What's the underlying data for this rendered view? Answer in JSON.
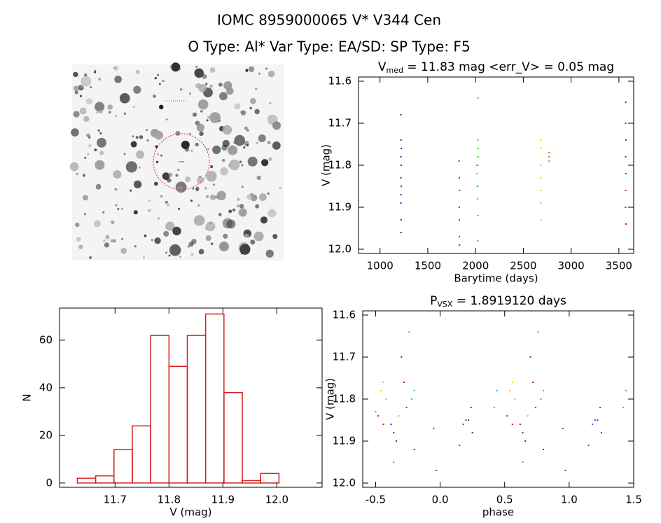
{
  "header": {
    "title": "IOMC 8959000065    V* V344 Cen",
    "subtitle": "O Type: Al*   Var Type: EA/SD:   SP Type: F5"
  },
  "chart_data": [
    {
      "type": "scatter",
      "title": {
        "main": "V",
        "sub": "med",
        "rest": " = 11.83 mag <err_V> = 0.05 mag"
      },
      "xlabel": "Barytime (days)",
      "ylabel": "V (mag)",
      "xlim": [
        775,
        3655
      ],
      "ylim": [
        12.01,
        11.59
      ],
      "xticks": [
        1000,
        1500,
        2000,
        2500,
        3000,
        3500
      ],
      "yticks": [
        11.6,
        11.7,
        11.8,
        11.9,
        {
          "value": 12,
          "label": "12.0"
        }
      ],
      "series": [
        {
          "color": "#5a1aa0",
          "x": [
            1218,
            1220,
            1222,
            1219,
            1221,
            1218,
            1222,
            1220,
            1219,
            1221,
            1220
          ],
          "values": [
            11.68,
            11.74,
            11.76,
            11.78,
            11.8,
            11.83,
            11.85,
            11.87,
            11.89,
            11.93,
            11.96
          ]
        },
        {
          "color": "#1a5ad0",
          "x": [
            1828,
            1830,
            1832,
            1829,
            1831,
            1830,
            1832
          ],
          "values": [
            11.79,
            11.83,
            11.86,
            11.9,
            11.93,
            11.97,
            11.99
          ]
        },
        {
          "color": "#20d0d0",
          "x": [
            2012,
            2015,
            2018,
            2020
          ],
          "values": [
            11.8,
            11.82,
            11.85,
            11.88
          ]
        },
        {
          "color": "#30d030",
          "x": [
            2025,
            2024,
            2026,
            2027,
            2023,
            2025,
            2026,
            2024
          ],
          "values": [
            11.64,
            11.74,
            11.76,
            11.78,
            11.8,
            11.85,
            11.92,
            11.98
          ]
        },
        {
          "color": "#f0c010",
          "x": [
            2680,
            2682,
            2684,
            2681,
            2683,
            2682,
            2684
          ],
          "values": [
            11.74,
            11.76,
            11.8,
            11.83,
            11.86,
            11.89,
            11.93
          ]
        },
        {
          "color": "#e07010",
          "x": [
            2770,
            2770,
            2770
          ],
          "values": [
            11.77,
            11.78,
            11.79
          ]
        },
        {
          "color": "#d01010",
          "x": [
            3572,
            3570,
            3574,
            3571,
            3573,
            3572,
            3570,
            3574
          ],
          "values": [
            11.65,
            11.7,
            11.74,
            11.78,
            11.82,
            11.86,
            11.9,
            11.94
          ]
        }
      ]
    },
    {
      "type": "histogram",
      "xlabel": "V (mag)",
      "ylabel": "N",
      "xlim": [
        11.597,
        12.084
      ],
      "ylim": [
        -1.8,
        73.5
      ],
      "xticks": [
        11.7,
        11.8,
        11.9,
        {
          "value": 12,
          "label": "12.0"
        }
      ],
      "yticks": [
        0,
        20,
        40,
        60
      ],
      "bins": [
        11.63,
        11.664,
        11.698,
        11.732,
        11.766,
        11.8,
        11.834,
        11.868,
        11.902,
        11.936,
        11.97,
        12.004
      ],
      "values": [
        2,
        3,
        14,
        24,
        62,
        49,
        62,
        71,
        38,
        1,
        4
      ],
      "color": "#d42020"
    },
    {
      "type": "scatter",
      "title": {
        "main": "P",
        "sub": "VSX",
        "rest": " = 1.8919120 days"
      },
      "xlabel": "phase",
      "ylabel": "V (mag)",
      "xlim": [
        -0.6,
        1.5
      ],
      "ylim": [
        12.01,
        11.59
      ],
      "xticks": [
        -0.5,
        {
          "value": 0,
          "label": "0.0"
        },
        0.5,
        {
          "value": 1,
          "label": "1.0"
        },
        1.5
      ],
      "yticks": [
        11.6,
        11.7,
        11.8,
        11.9,
        {
          "value": 12,
          "label": "12.0"
        }
      ],
      "series": [
        {
          "color": "#5a1aa0",
          "x": [
            -0.38,
            -0.36,
            -0.34,
            -0.2,
            0.22,
            0.25,
            0.62,
            0.64,
            0.66,
            0.8,
            1.22,
            1.25
          ],
          "values": [
            11.86,
            11.88,
            11.9,
            11.92,
            11.85,
            11.88,
            11.86,
            11.88,
            11.9,
            11.92,
            11.85,
            11.88
          ]
        },
        {
          "color": "#d01010",
          "x": [
            -0.48,
            -0.44,
            -0.3,
            -0.28,
            -0.26,
            0.2,
            0.24,
            0.52,
            0.56,
            0.7,
            0.72,
            0.74,
            1.2,
            1.24
          ],
          "values": [
            11.84,
            11.86,
            11.7,
            11.76,
            11.82,
            11.85,
            11.82,
            11.84,
            11.86,
            11.7,
            11.76,
            11.82,
            11.85,
            11.82
          ]
        },
        {
          "color": "#f0c010",
          "x": [
            -0.46,
            -0.44,
            -0.42,
            -0.32,
            0.54,
            0.56,
            0.58,
            0.68
          ],
          "values": [
            11.78,
            11.76,
            11.8,
            11.84,
            11.78,
            11.76,
            11.8,
            11.84
          ]
        },
        {
          "color": "#30d030",
          "x": [
            -0.24,
            -0.22,
            -0.36,
            0.76,
            0.78,
            0.64
          ],
          "values": [
            11.64,
            11.8,
            11.95,
            11.64,
            11.8,
            11.95
          ]
        },
        {
          "color": "#20c0c0",
          "x": [
            -0.5,
            -0.2,
            0.42,
            0.44,
            0.8,
            1.42,
            1.44
          ],
          "values": [
            11.83,
            11.78,
            11.82,
            11.78,
            11.78,
            11.82,
            11.78
          ]
        },
        {
          "color": "#1a5ad0",
          "x": [
            -0.05,
            -0.03,
            0.15,
            0.18,
            0.95,
            0.97,
            1.15,
            1.18
          ],
          "values": [
            11.87,
            11.97,
            11.91,
            11.86,
            11.87,
            11.97,
            11.91,
            11.86
          ]
        }
      ]
    }
  ]
}
